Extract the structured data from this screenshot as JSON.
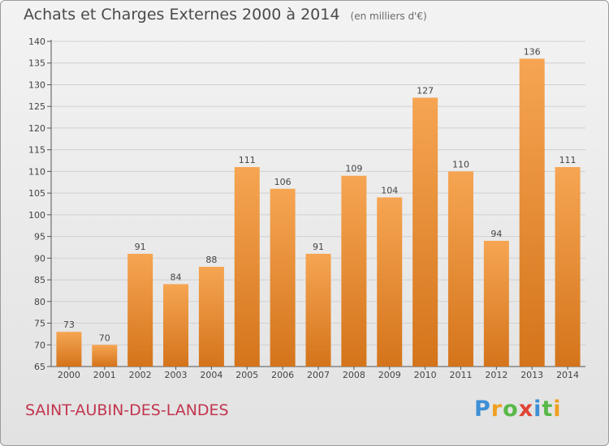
{
  "header": {
    "title": "Achats et Charges Externes 2000 à 2014",
    "subtitle": "(en milliers d'€)"
  },
  "footer": {
    "commune": "SAINT-AUBIN-DES-LANDES"
  },
  "logo": {
    "text": "Proxiti",
    "letters": [
      {
        "ch": "P",
        "color": "#3d8fd6"
      },
      {
        "ch": "r",
        "color": "#f0a020"
      },
      {
        "ch": "o",
        "color": "#58b848"
      },
      {
        "ch": "x",
        "color": "#e04434"
      },
      {
        "ch": "i",
        "color": "#3d8fd6"
      },
      {
        "ch": "t",
        "color": "#58b848"
      },
      {
        "ch": "i",
        "color": "#f0a020"
      }
    ]
  },
  "colors": {
    "bar_top": "#f6a552",
    "bar_bottom": "#d4741b",
    "grid": "#d0d0d0",
    "commune": "#c2354f"
  },
  "chart_data": {
    "type": "bar",
    "categories": [
      "2000",
      "2001",
      "2002",
      "2003",
      "2004",
      "2005",
      "2006",
      "2007",
      "2008",
      "2009",
      "2010",
      "2011",
      "2012",
      "2013",
      "2014"
    ],
    "values": [
      73,
      70,
      91,
      84,
      88,
      111,
      106,
      91,
      109,
      104,
      127,
      110,
      94,
      136,
      111
    ],
    "ylim": [
      65,
      140
    ],
    "yticks": [
      65,
      70,
      75,
      80,
      85,
      90,
      95,
      100,
      105,
      110,
      115,
      120,
      125,
      130,
      135,
      140
    ],
    "grid": true,
    "data_labels": true
  }
}
